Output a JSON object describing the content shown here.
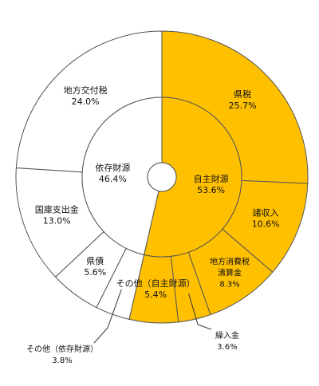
{
  "chart_data": {
    "type": "pie",
    "subtype": "double-donut",
    "colors": {
      "own": "#ffc000",
      "dependent": "#ffffff",
      "stroke": "#555555"
    },
    "inner": [
      {
        "name": "自主財源",
        "value": 53.6,
        "label": "53.6%",
        "group": "own"
      },
      {
        "name": "依存財源",
        "value": 46.4,
        "label": "46.4%",
        "group": "dependent"
      }
    ],
    "outer": [
      {
        "name": "県税",
        "value": 25.7,
        "label": "25.7%",
        "group": "own"
      },
      {
        "name": "諸収入",
        "value": 10.6,
        "label": "10.6%",
        "group": "own"
      },
      {
        "name": "地方消費税清算金",
        "display": [
          "地方消費税",
          "清算金"
        ],
        "value": 8.3,
        "label": "8.3%",
        "group": "own"
      },
      {
        "name": "繰入金",
        "value": 3.6,
        "label": "3.6%",
        "group": "own"
      },
      {
        "name": "その他（自主財源）",
        "value": 5.4,
        "label": "5.4%",
        "group": "own"
      },
      {
        "name": "その他（依存財源）",
        "value": 3.8,
        "label": "3.8%",
        "group": "dependent"
      },
      {
        "name": "県債",
        "value": 5.6,
        "label": "5.6%",
        "group": "dependent"
      },
      {
        "name": "国庫支出金",
        "value": 13.0,
        "label": "13.0%",
        "group": "dependent"
      },
      {
        "name": "地方交付税",
        "value": 24.0,
        "label": "24.0%",
        "group": "dependent"
      }
    ]
  }
}
